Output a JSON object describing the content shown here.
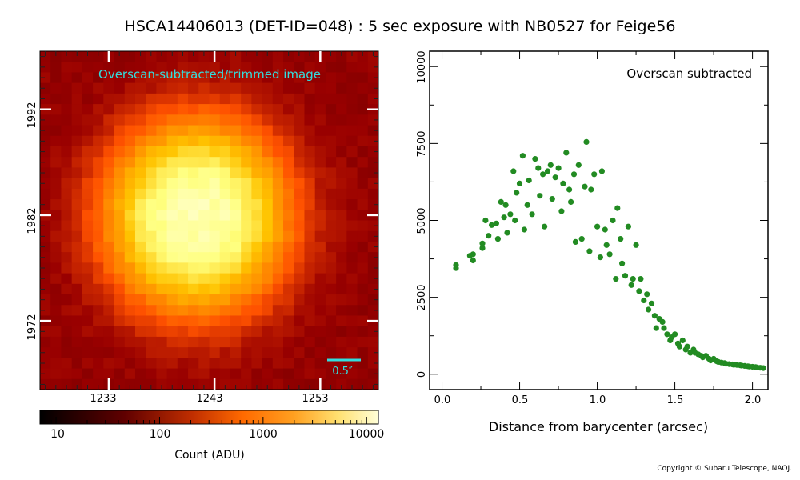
{
  "title": "HSCA14406013 (DET-ID=048) :  5 sec exposure with NB0527 for Feige56",
  "copyright": "Copyright © Subaru Telescope, NAOJ.",
  "image_panel": {
    "label": "Overscan-subtracted/trimmed image",
    "label_color": "#33dddd",
    "scale_label": "0.5″",
    "x_ticks": [
      "1233",
      "1243",
      "1253"
    ],
    "y_ticks": [
      "1992",
      "1982",
      "1972"
    ]
  },
  "colorbar": {
    "tick_labels": [
      "10",
      "100",
      "1000",
      "10000"
    ],
    "label": "Count (ADU)",
    "scale": "log",
    "range": [
      7,
      13000
    ]
  },
  "chart_data": {
    "type": "scatter",
    "annotation": "Overscan subtracted",
    "xlabel": "Distance from barycenter (arcsec)",
    "ylabel": "",
    "xlim": [
      -0.08,
      2.1
    ],
    "ylim": [
      -500,
      10500
    ],
    "x_ticks": [
      "0.0",
      "0.5",
      "1.0",
      "1.5",
      "2.0"
    ],
    "y_ticks": [
      "0",
      "2500",
      "5000",
      "7500",
      "10000"
    ],
    "color": "#228b22",
    "x": [
      0.09,
      0.09,
      0.18,
      0.2,
      0.2,
      0.26,
      0.26,
      0.28,
      0.3,
      0.32,
      0.35,
      0.36,
      0.38,
      0.4,
      0.41,
      0.42,
      0.44,
      0.46,
      0.47,
      0.48,
      0.5,
      0.52,
      0.53,
      0.55,
      0.56,
      0.58,
      0.6,
      0.62,
      0.63,
      0.65,
      0.66,
      0.68,
      0.7,
      0.71,
      0.73,
      0.75,
      0.77,
      0.78,
      0.8,
      0.82,
      0.83,
      0.85,
      0.86,
      0.88,
      0.9,
      0.92,
      0.93,
      0.95,
      0.96,
      0.98,
      1.0,
      1.02,
      1.03,
      1.05,
      1.06,
      1.08,
      1.1,
      1.12,
      1.13,
      1.15,
      1.16,
      1.18,
      1.2,
      1.22,
      1.23,
      1.25,
      1.27,
      1.28,
      1.3,
      1.32,
      1.33,
      1.35,
      1.37,
      1.38,
      1.4,
      1.42,
      1.43,
      1.45,
      1.47,
      1.48,
      1.5,
      1.52,
      1.53,
      1.55,
      1.57,
      1.58,
      1.6,
      1.62,
      1.63,
      1.65,
      1.67,
      1.68,
      1.7,
      1.72,
      1.73,
      1.75,
      1.77,
      1.78,
      1.8,
      1.82,
      1.83,
      1.85,
      1.87,
      1.88,
      1.9,
      1.92,
      1.93,
      1.95,
      1.97,
      1.98,
      2.0,
      2.02,
      2.03,
      2.05,
      2.07
    ],
    "y": [
      3550,
      3450,
      3850,
      3900,
      3700,
      4250,
      4100,
      5000,
      4500,
      4850,
      4900,
      4400,
      5600,
      5100,
      5500,
      4600,
      5200,
      6600,
      5000,
      5900,
      6200,
      7100,
      4700,
      5500,
      6300,
      5200,
      7000,
      6700,
      5800,
      6500,
      4800,
      6600,
      6800,
      5700,
      6400,
      6700,
      5300,
      6200,
      7200,
      6000,
      5600,
      6500,
      4300,
      6800,
      4400,
      6100,
      7550,
      4000,
      6000,
      6500,
      4800,
      3800,
      6600,
      4700,
      4200,
      3900,
      5000,
      3100,
      5400,
      4400,
      3600,
      3200,
      4800,
      2900,
      3100,
      4200,
      2700,
      3100,
      2400,
      2600,
      2100,
      2300,
      1900,
      1500,
      1800,
      1700,
      1500,
      1300,
      1100,
      1200,
      1300,
      1000,
      900,
      1100,
      800,
      900,
      700,
      800,
      700,
      650,
      600,
      550,
      600,
      500,
      450,
      500,
      420,
      400,
      380,
      360,
      340,
      330,
      320,
      310,
      300,
      290,
      280,
      270,
      260,
      250,
      240,
      230,
      220,
      210,
      200
    ]
  }
}
